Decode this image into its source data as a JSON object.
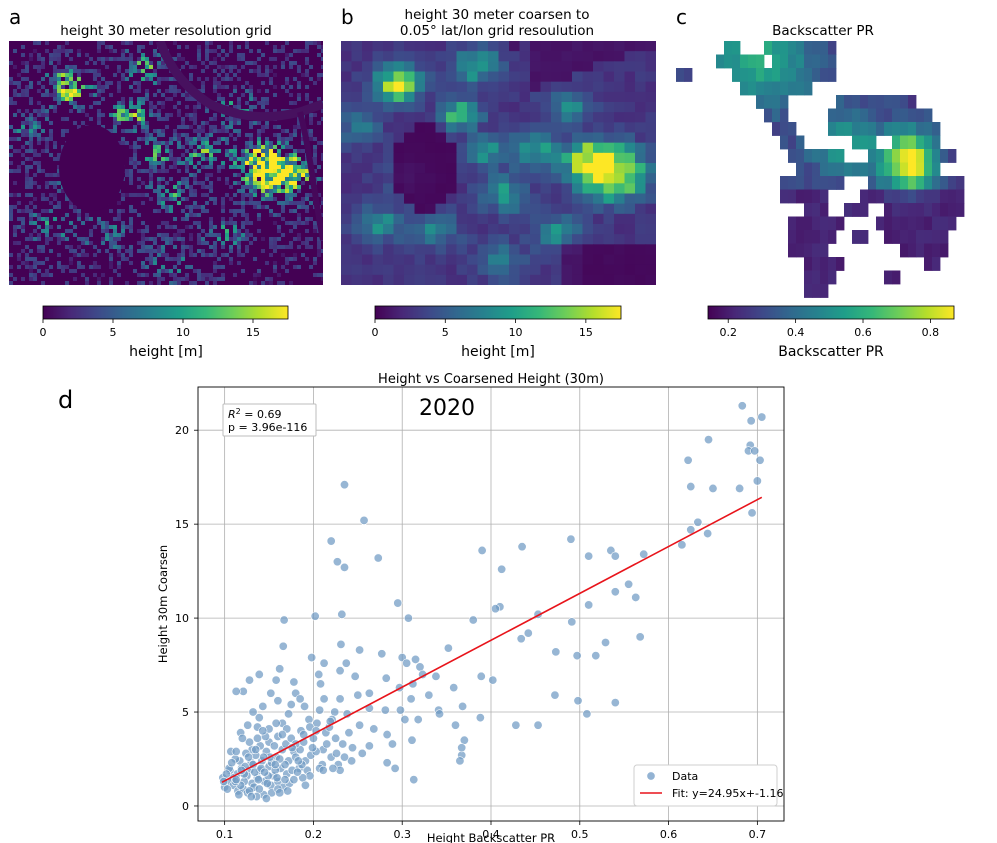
{
  "colors": {
    "viridis": [
      "#440154",
      "#482878",
      "#3e4989",
      "#31688e",
      "#26828e",
      "#1f9e89",
      "#35b779",
      "#6ece58",
      "#b5de2b",
      "#fde725"
    ],
    "scatter": "#6f9ac4",
    "fit_line": "#e8141b"
  },
  "panels": [
    {
      "label": "a",
      "title_lines": [
        "height 30 meter resolution grid"
      ],
      "colorbar_label": "height [m]",
      "colorbar_ticks": [
        "0",
        "5",
        "10",
        "15"
      ],
      "colorbar_values": [
        0,
        5,
        10,
        15
      ],
      "colorbar_range": [
        0,
        17.5
      ]
    },
    {
      "label": "b",
      "title_lines": [
        "height 30 meter coarsen to",
        "0.05° lat/lon grid resoulution"
      ],
      "colorbar_label": "height [m]",
      "colorbar_ticks": [
        "0",
        "5",
        "10",
        "15"
      ],
      "colorbar_values": [
        0,
        5,
        10,
        15
      ],
      "colorbar_range": [
        0,
        17.5
      ]
    },
    {
      "label": "c",
      "title_lines": [
        "Backscatter PR"
      ],
      "colorbar_label": "Backscatter PR",
      "colorbar_ticks": [
        "0.2",
        "0.4",
        "0.6",
        "0.8"
      ],
      "colorbar_values": [
        0.2,
        0.4,
        0.6,
        0.8
      ],
      "colorbar_range": [
        0.14,
        0.87
      ]
    }
  ],
  "chart_data": {
    "label": "d",
    "type": "scatter",
    "title": "Height vs Coarsened Height (30m)",
    "year_label": "2020",
    "xlabel": "Height Backscatter PR",
    "ylabel": "Height 30m Coarsen",
    "xlim": [
      0.07,
      0.73
    ],
    "ylim": [
      -0.8,
      22.3
    ],
    "xticks": [
      0.1,
      0.2,
      0.3,
      0.4,
      0.5,
      0.6,
      0.7
    ],
    "xtick_labels": [
      "0.1",
      "0.2",
      "0.3",
      "0.4",
      "0.5",
      "0.6",
      "0.7"
    ],
    "yticks": [
      0,
      5,
      10,
      15,
      20
    ],
    "ytick_labels": [
      "0",
      "5",
      "10",
      "15",
      "20"
    ],
    "grid": true,
    "stats": {
      "r2_prefix": "R",
      "r2_exp": "2",
      "r2_value": " = 0.69",
      "p_text": "p = 3.96e-116"
    },
    "legend": {
      "location": "lower-right",
      "data_label": "Data",
      "fit_label": "Fit: y=24.95x+-1.16"
    },
    "fit": {
      "slope": 24.95,
      "intercept": -1.16,
      "x_range": [
        0.097,
        0.705
      ]
    },
    "points": [
      [
        0.683,
        21.3
      ],
      [
        0.705,
        20.7
      ],
      [
        0.693,
        20.5
      ],
      [
        0.645,
        19.5
      ],
      [
        0.692,
        19.2
      ],
      [
        0.69,
        18.9
      ],
      [
        0.697,
        18.9
      ],
      [
        0.622,
        18.4
      ],
      [
        0.703,
        18.4
      ],
      [
        0.7,
        17.3
      ],
      [
        0.625,
        17.0
      ],
      [
        0.65,
        16.9
      ],
      [
        0.68,
        16.9
      ],
      [
        0.235,
        17.1
      ],
      [
        0.257,
        15.2
      ],
      [
        0.694,
        15.6
      ],
      [
        0.633,
        15.1
      ],
      [
        0.625,
        14.7
      ],
      [
        0.644,
        14.5
      ],
      [
        0.615,
        13.9
      ],
      [
        0.49,
        14.2
      ],
      [
        0.22,
        14.1
      ],
      [
        0.435,
        13.8
      ],
      [
        0.39,
        13.6
      ],
      [
        0.535,
        13.6
      ],
      [
        0.54,
        13.3
      ],
      [
        0.572,
        13.4
      ],
      [
        0.51,
        13.3
      ],
      [
        0.273,
        13.2
      ],
      [
        0.227,
        13.0
      ],
      [
        0.235,
        12.7
      ],
      [
        0.412,
        12.6
      ],
      [
        0.555,
        11.8
      ],
      [
        0.563,
        11.1
      ],
      [
        0.51,
        10.7
      ],
      [
        0.41,
        10.6
      ],
      [
        0.54,
        11.4
      ],
      [
        0.295,
        10.8
      ],
      [
        0.202,
        10.1
      ],
      [
        0.232,
        10.2
      ],
      [
        0.167,
        9.9
      ],
      [
        0.307,
        10.0
      ],
      [
        0.38,
        9.9
      ],
      [
        0.405,
        10.5
      ],
      [
        0.453,
        10.2
      ],
      [
        0.491,
        9.8
      ],
      [
        0.442,
        9.2
      ],
      [
        0.568,
        9.0
      ],
      [
        0.231,
        8.6
      ],
      [
        0.434,
        8.9
      ],
      [
        0.529,
        8.7
      ],
      [
        0.252,
        8.3
      ],
      [
        0.166,
        8.5
      ],
      [
        0.198,
        7.9
      ],
      [
        0.212,
        7.6
      ],
      [
        0.277,
        8.1
      ],
      [
        0.3,
        7.9
      ],
      [
        0.315,
        7.8
      ],
      [
        0.352,
        8.4
      ],
      [
        0.473,
        8.2
      ],
      [
        0.497,
        8.0
      ],
      [
        0.518,
        8.0
      ],
      [
        0.237,
        7.6
      ],
      [
        0.23,
        7.2
      ],
      [
        0.206,
        7.0
      ],
      [
        0.247,
        6.9
      ],
      [
        0.282,
        6.8
      ],
      [
        0.305,
        7.6
      ],
      [
        0.32,
        7.4
      ],
      [
        0.323,
        7.0
      ],
      [
        0.139,
        7.0
      ],
      [
        0.162,
        7.3
      ],
      [
        0.178,
        6.6
      ],
      [
        0.128,
        6.7
      ],
      [
        0.121,
        6.1
      ],
      [
        0.113,
        6.1
      ],
      [
        0.152,
        6.0
      ],
      [
        0.158,
        6.7
      ],
      [
        0.18,
        6.0
      ],
      [
        0.263,
        6.0
      ],
      [
        0.208,
        6.5
      ],
      [
        0.338,
        6.9
      ],
      [
        0.389,
        6.9
      ],
      [
        0.402,
        6.7
      ],
      [
        0.312,
        6.5
      ],
      [
        0.358,
        6.3
      ],
      [
        0.297,
        6.3
      ],
      [
        0.25,
        5.9
      ],
      [
        0.23,
        5.7
      ],
      [
        0.33,
        5.9
      ],
      [
        0.31,
        5.7
      ],
      [
        0.472,
        5.9
      ],
      [
        0.498,
        5.6
      ],
      [
        0.54,
        5.5
      ],
      [
        0.263,
        5.2
      ],
      [
        0.224,
        5.0
      ],
      [
        0.281,
        5.1
      ],
      [
        0.298,
        5.1
      ],
      [
        0.303,
        4.6
      ],
      [
        0.341,
        5.1
      ],
      [
        0.318,
        4.6
      ],
      [
        0.342,
        4.9
      ],
      [
        0.368,
        5.3
      ],
      [
        0.388,
        4.7
      ],
      [
        0.36,
        4.3
      ],
      [
        0.428,
        4.3
      ],
      [
        0.453,
        4.3
      ],
      [
        0.508,
        4.9
      ],
      [
        0.19,
        5.3
      ],
      [
        0.195,
        4.6
      ],
      [
        0.204,
        4.4
      ],
      [
        0.172,
        4.9
      ],
      [
        0.165,
        4.4
      ],
      [
        0.139,
        4.7
      ],
      [
        0.15,
        4.1
      ],
      [
        0.143,
        5.3
      ],
      [
        0.137,
        4.2
      ],
      [
        0.126,
        4.3
      ],
      [
        0.118,
        3.9
      ],
      [
        0.252,
        4.3
      ],
      [
        0.268,
        4.1
      ],
      [
        0.283,
        3.8
      ],
      [
        0.289,
        3.3
      ],
      [
        0.311,
        3.5
      ],
      [
        0.37,
        3.5
      ],
      [
        0.367,
        2.7
      ],
      [
        0.365,
        2.4
      ],
      [
        0.367,
        3.1
      ],
      [
        0.255,
        2.8
      ],
      [
        0.283,
        2.3
      ],
      [
        0.292,
        2.0
      ],
      [
        0.313,
        1.4
      ],
      [
        0.214,
        3.9
      ],
      [
        0.221,
        4.6
      ],
      [
        0.2,
        3.6
      ],
      [
        0.189,
        3.4
      ],
      [
        0.211,
        3.0
      ],
      [
        0.22,
        2.6
      ],
      [
        0.228,
        2.2
      ],
      [
        0.23,
        1.9
      ],
      [
        0.243,
        2.4
      ],
      [
        0.235,
        2.6
      ],
      [
        0.21,
        2.2
      ],
      [
        0.191,
        2.4
      ],
      [
        0.178,
        2.9
      ],
      [
        0.184,
        2.0
      ],
      [
        0.172,
        2.4
      ],
      [
        0.16,
        3.7
      ],
      [
        0.165,
        3.0
      ],
      [
        0.15,
        3.4
      ],
      [
        0.147,
        2.9
      ],
      [
        0.14,
        3.2
      ],
      [
        0.158,
        2.6
      ],
      [
        0.142,
        2.4
      ],
      [
        0.15,
        2.1
      ],
      [
        0.163,
        2.0
      ],
      [
        0.17,
        1.7
      ],
      [
        0.155,
        1.6
      ],
      [
        0.135,
        2.7
      ],
      [
        0.13,
        2.3
      ],
      [
        0.128,
        1.9
      ],
      [
        0.125,
        1.6
      ],
      [
        0.137,
        1.5
      ],
      [
        0.145,
        1.3
      ],
      [
        0.152,
        1.1
      ],
      [
        0.16,
        1.3
      ],
      [
        0.168,
        2.2
      ],
      [
        0.176,
        1.9
      ],
      [
        0.14,
        1.9
      ],
      [
        0.131,
        1.2
      ],
      [
        0.122,
        1.3
      ],
      [
        0.119,
        2.0
      ],
      [
        0.114,
        1.7
      ],
      [
        0.109,
        1.5
      ],
      [
        0.104,
        1.3
      ],
      [
        0.1,
        1.0
      ],
      [
        0.106,
        1.9
      ],
      [
        0.098,
        1.5
      ],
      [
        0.11,
        1.1
      ],
      [
        0.115,
        0.8
      ],
      [
        0.121,
        0.9
      ],
      [
        0.126,
        0.7
      ],
      [
        0.133,
        1.0
      ],
      [
        0.144,
        0.6
      ],
      [
        0.153,
        0.7
      ],
      [
        0.149,
        1.6
      ],
      [
        0.157,
        1.9
      ],
      [
        0.162,
        2.5
      ],
      [
        0.132,
        2.2
      ],
      [
        0.117,
        2.4
      ],
      [
        0.105,
        2.0
      ],
      [
        0.112,
        2.5
      ],
      [
        0.18,
        2.6
      ],
      [
        0.185,
        3.0
      ],
      [
        0.193,
        1.9
      ],
      [
        0.156,
        3.2
      ],
      [
        0.137,
        3.6
      ],
      [
        0.146,
        3.7
      ],
      [
        0.169,
        3.3
      ],
      [
        0.131,
        3.0
      ],
      [
        0.124,
        2.8
      ],
      [
        0.108,
        2.3
      ],
      [
        0.102,
        1.7
      ],
      [
        0.118,
        1.1
      ],
      [
        0.139,
        0.9
      ],
      [
        0.148,
        1.2
      ],
      [
        0.166,
        1.0
      ],
      [
        0.173,
        1.2
      ],
      [
        0.171,
        0.8
      ],
      [
        0.136,
        0.5
      ],
      [
        0.128,
        0.8
      ],
      [
        0.16,
        0.9
      ],
      [
        0.112,
        1.3
      ],
      [
        0.122,
        1.7
      ],
      [
        0.127,
        2.6
      ],
      [
        0.134,
        1.8
      ],
      [
        0.175,
        3.6
      ],
      [
        0.187,
        2.2
      ],
      [
        0.197,
        2.7
      ],
      [
        0.203,
        2.9
      ],
      [
        0.215,
        3.3
      ],
      [
        0.225,
        3.6
      ],
      [
        0.222,
        2.0
      ],
      [
        0.207,
        2.0
      ],
      [
        0.196,
        1.6
      ],
      [
        0.188,
        1.5
      ],
      [
        0.183,
        2.4
      ],
      [
        0.141,
        2.0
      ],
      [
        0.153,
        2.3
      ],
      [
        0.128,
        3.4
      ],
      [
        0.143,
        4.0
      ],
      [
        0.158,
        4.4
      ],
      [
        0.17,
        4.1
      ],
      [
        0.186,
        4.0
      ],
      [
        0.196,
        4.2
      ],
      [
        0.218,
        4.2
      ],
      [
        0.24,
        3.9
      ],
      [
        0.207,
        5.1
      ],
      [
        0.212,
        5.7
      ],
      [
        0.185,
        5.7
      ],
      [
        0.175,
        5.4
      ],
      [
        0.16,
        5.6
      ],
      [
        0.132,
        5.0
      ],
      [
        0.12,
        3.6
      ],
      [
        0.107,
        2.9
      ],
      [
        0.099,
        1.3
      ],
      [
        0.103,
        0.9
      ],
      [
        0.116,
        0.6
      ],
      [
        0.13,
        0.5
      ],
      [
        0.147,
        0.4
      ],
      [
        0.162,
        0.7
      ],
      [
        0.178,
        1.4
      ],
      [
        0.191,
        1.1
      ],
      [
        0.138,
        1.4
      ],
      [
        0.123,
        2.1
      ],
      [
        0.113,
        2.9
      ],
      [
        0.151,
        2.6
      ],
      [
        0.165,
        3.8
      ],
      [
        0.18,
        3.3
      ],
      [
        0.199,
        3.1
      ],
      [
        0.244,
        3.1
      ],
      [
        0.211,
        1.9
      ],
      [
        0.226,
        2.8
      ],
      [
        0.233,
        3.3
      ],
      [
        0.263,
        3.2
      ],
      [
        0.238,
        4.9
      ],
      [
        0.219,
        4.5
      ],
      [
        0.203,
        4.0
      ],
      [
        0.189,
        3.8
      ],
      [
        0.176,
        3.1
      ],
      [
        0.157,
        2.2
      ],
      [
        0.144,
        2.6
      ],
      [
        0.135,
        3.0
      ],
      [
        0.119,
        1.9
      ],
      [
        0.113,
        1.4
      ],
      [
        0.145,
        1.8
      ],
      [
        0.159,
        1.5
      ],
      [
        0.168,
        1.4
      ],
      [
        0.182,
        1.8
      ]
    ]
  }
}
